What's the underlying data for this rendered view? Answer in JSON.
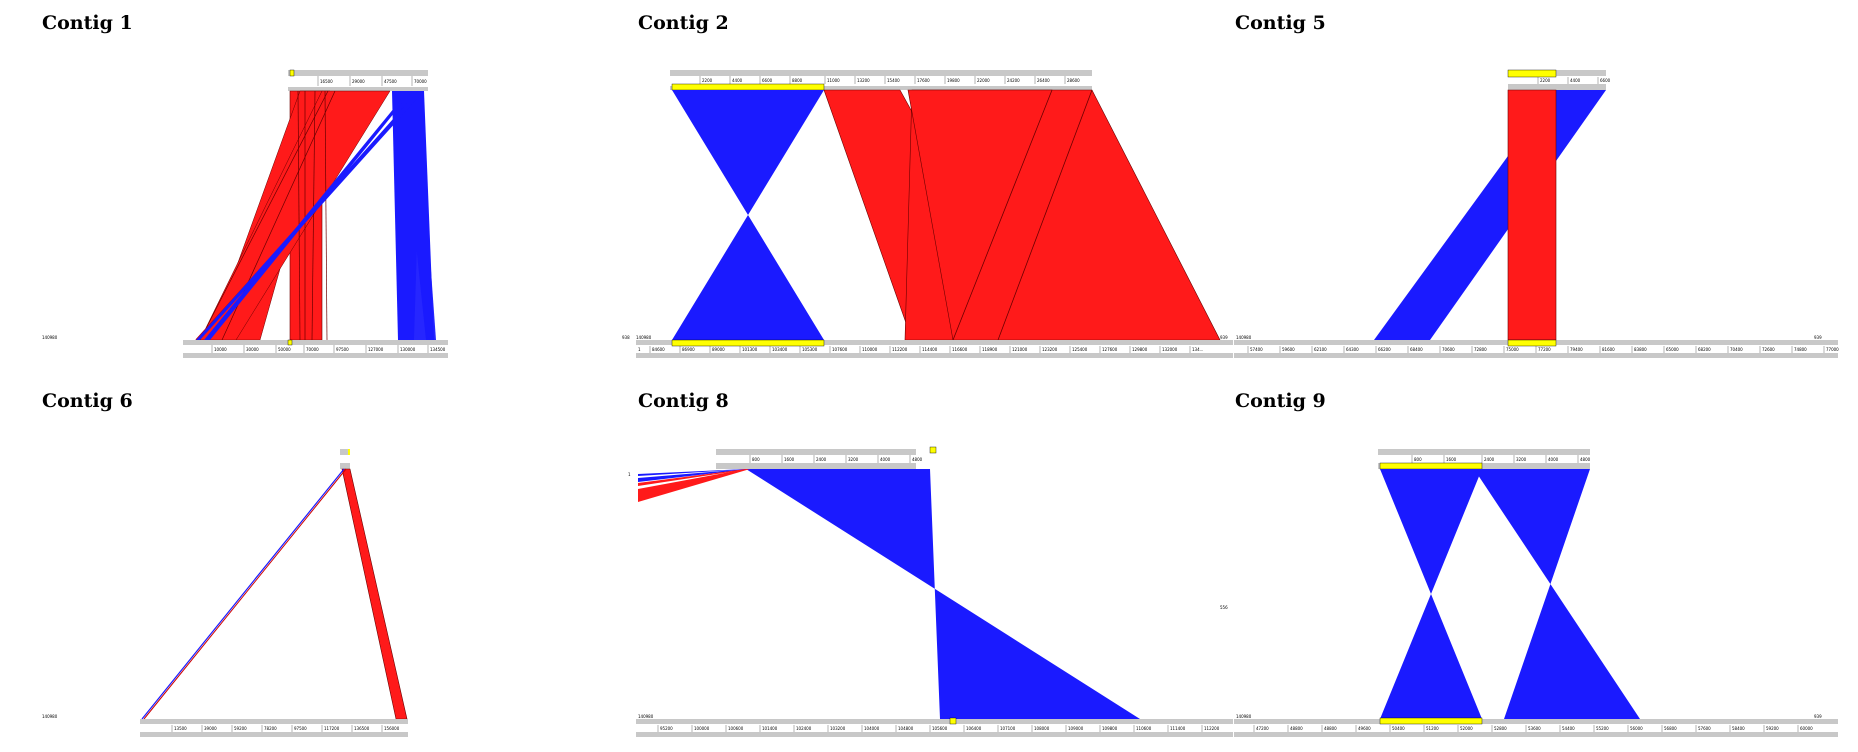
{
  "colors": {
    "forward": "#ff1a1a",
    "reverse": "#1a1aff",
    "track": "#c8c8c8",
    "highlight": "#ffff00"
  },
  "panels": [
    {
      "id": "contig1",
      "title": "Contig 1",
      "ref_label": "140980",
      "top_ticks": [
        "",
        "16500",
        "29000",
        "47500",
        "70000"
      ],
      "bottom_ticks": [
        "10000",
        "30000",
        "50000",
        "70000",
        "97500",
        "127000",
        "130000",
        "134500"
      ]
    },
    {
      "id": "contig2",
      "title": "Contig 2",
      "ref_label": "140980",
      "left_label": "938",
      "left_bottom_label": "1",
      "right_label": "939",
      "top_ticks": [
        "2200",
        "4400",
        "6600",
        "8800",
        "11000",
        "13200",
        "15400",
        "17600",
        "19800",
        "22000",
        "24200",
        "26400",
        "28600"
      ],
      "bottom_ticks": [
        "84600",
        "86900",
        "89000",
        "101300",
        "103400",
        "105300",
        "107600",
        "110000",
        "112200",
        "114400",
        "116600",
        "118900",
        "121000",
        "123200",
        "125400",
        "127600",
        "129800",
        "132000",
        "134..."
      ]
    },
    {
      "id": "contig5",
      "title": "Contig 5",
      "ref_label": "140980",
      "right_label": "939",
      "top_ticks": [
        "2200",
        "4400",
        "6600"
      ],
      "bottom_ticks": [
        "57400",
        "59600",
        "62100",
        "64300",
        "66200",
        "68400",
        "70600",
        "72800",
        "75000",
        "77200",
        "79400",
        "81600",
        "83800",
        "65000",
        "68200",
        "70400",
        "72600",
        "74800",
        "77000"
      ]
    },
    {
      "id": "contig6",
      "title": "Contig 6",
      "ref_label": "140980",
      "bottom_ticks": [
        "13500",
        "39000",
        "59200",
        "78200",
        "97500",
        "117200",
        "136500",
        "156000"
      ]
    },
    {
      "id": "contig8",
      "title": "Contig 8",
      "ref_label": "140980",
      "left_label": "1",
      "top_ticks": [
        "800",
        "1600",
        "2400",
        "3200",
        "4000",
        "4800"
      ],
      "bottom_ticks": [
        "95200",
        "100000",
        "100600",
        "101400",
        "102400",
        "103200",
        "104000",
        "104800",
        "105600",
        "106400",
        "107100",
        "108000",
        "109000",
        "109800",
        "110600",
        "111400",
        "112200"
      ]
    },
    {
      "id": "contig9",
      "title": "Contig 9",
      "ref_label": "140980",
      "left_label": "556",
      "right_label": "939",
      "top_ticks": [
        "800",
        "1600",
        "2400",
        "3200",
        "4000",
        "4800"
      ],
      "bottom_ticks": [
        "47200",
        "48800",
        "48800",
        "49600",
        "50400",
        "51200",
        "52000",
        "52800",
        "53600",
        "54400",
        "55200",
        "56000",
        "56800",
        "57600",
        "58400",
        "59200",
        "60000"
      ]
    }
  ]
}
